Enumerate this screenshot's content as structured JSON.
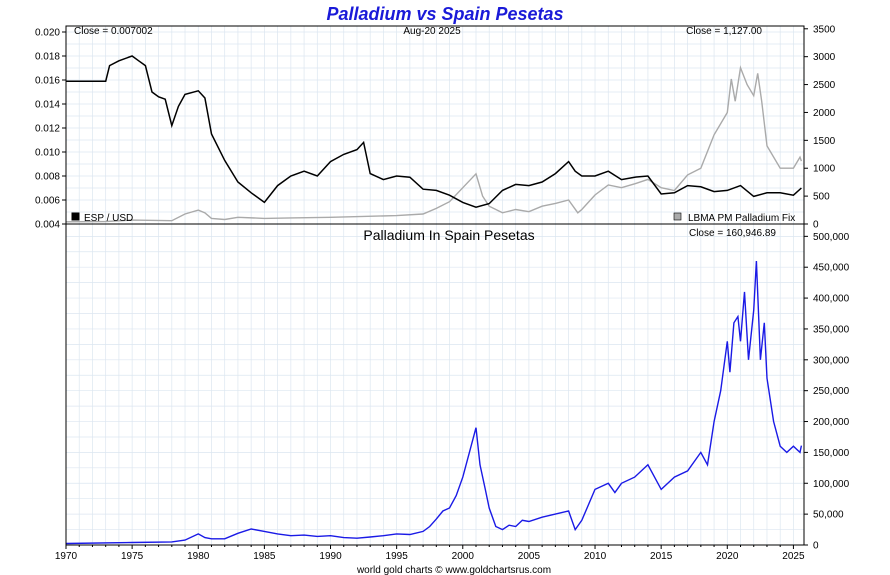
{
  "title": "Palladium vs Spain Pesetas",
  "footer": "world gold charts © www.goldchartsrus.com",
  "colors": {
    "title": "#1a1ad8",
    "esp_usd": "#000000",
    "palladium_usd": "#aaaaaa",
    "palladium_esp": "#1a1ae6",
    "grid": "#dce6f0",
    "frame": "#000000"
  },
  "x_axis": {
    "range": [
      1970,
      2025.8
    ],
    "tick_labels": [
      "1970",
      "1975",
      "1980",
      "1985",
      "1990",
      "1995",
      "2000",
      "2005",
      "2010",
      "2015",
      "2020",
      "2025"
    ]
  },
  "chart_data": [
    {
      "type": "line",
      "panel": "top",
      "date_label": "Aug-20  2025",
      "left_close": "Close = 0.007002",
      "right_close": "Close = 1,127.00",
      "left_axis": {
        "range": [
          0.004,
          0.0205
        ],
        "tick_labels": [
          "0.004",
          "0.006",
          "0.008",
          "0.010",
          "0.012",
          "0.014",
          "0.016",
          "0.018",
          "0.020"
        ]
      },
      "right_axis": {
        "range": [
          0,
          3550
        ],
        "tick_labels": [
          "0",
          "500",
          "1000",
          "1500",
          "2000",
          "2500",
          "3000",
          "3500"
        ]
      },
      "legend_left": "ESP / USD",
      "legend_right": "LBMA PM Palladium Fix",
      "series": [
        {
          "name": "ESP / USD",
          "axis": "left",
          "x": [
            1970,
            1971,
            1972,
            1973,
            1973.3,
            1974,
            1975,
            1975.5,
            1976,
            1976.5,
            1977,
            1977.5,
            1978,
            1978.5,
            1979,
            1980,
            1980.5,
            1981,
            1982,
            1983,
            1984,
            1985,
            1986,
            1987,
            1988,
            1989,
            1990,
            1991,
            1992,
            1992.5,
            1993,
            1994,
            1995,
            1996,
            1997,
            1998,
            1999,
            2000,
            2001,
            2002,
            2003,
            2004,
            2005,
            2006,
            2007,
            2008,
            2008.5,
            2009,
            2010,
            2011,
            2012,
            2013,
            2014,
            2015,
            2016,
            2017,
            2018,
            2019,
            2020,
            2021,
            2022,
            2023,
            2024,
            2025,
            2025.6
          ],
          "y": [
            0.0159,
            0.0159,
            0.0159,
            0.0159,
            0.0172,
            0.0176,
            0.018,
            0.0176,
            0.0172,
            0.015,
            0.0146,
            0.0144,
            0.0122,
            0.0138,
            0.0148,
            0.0151,
            0.0145,
            0.0115,
            0.0093,
            0.0075,
            0.0066,
            0.0058,
            0.0072,
            0.008,
            0.0084,
            0.008,
            0.0092,
            0.0098,
            0.0102,
            0.0108,
            0.0082,
            0.0077,
            0.008,
            0.0079,
            0.0069,
            0.0068,
            0.0064,
            0.0058,
            0.0054,
            0.0057,
            0.0068,
            0.0073,
            0.0072,
            0.0075,
            0.0082,
            0.0092,
            0.0084,
            0.008,
            0.008,
            0.0084,
            0.0077,
            0.0079,
            0.008,
            0.0065,
            0.0066,
            0.0072,
            0.0071,
            0.0067,
            0.0068,
            0.0072,
            0.0063,
            0.0066,
            0.0066,
            0.0064,
            0.007
          ]
        },
        {
          "name": "LBMA PM Palladium Fix",
          "axis": "right",
          "x": [
            1970,
            1973,
            1975,
            1978,
            1979,
            1980,
            1980.5,
            1981,
            1982,
            1983,
            1985,
            1987,
            1990,
            1995,
            1997,
            1998,
            1999,
            2000,
            2001,
            2001.5,
            2002,
            2003,
            2004,
            2005,
            2006,
            2007,
            2008,
            2008.7,
            2009,
            2010,
            2011,
            2012,
            2013,
            2014,
            2015,
            2016,
            2017,
            2018,
            2019,
            2020,
            2020.3,
            2020.6,
            2021,
            2021.5,
            2022,
            2022.3,
            2022.6,
            2023,
            2024,
            2025,
            2025.5,
            2025.6
          ],
          "y": [
            40,
            45,
            70,
            60,
            180,
            250,
            200,
            100,
            80,
            120,
            100,
            110,
            120,
            150,
            180,
            280,
            400,
            650,
            900,
            500,
            320,
            200,
            260,
            220,
            320,
            370,
            430,
            200,
            260,
            520,
            700,
            650,
            720,
            800,
            650,
            600,
            880,
            1000,
            1600,
            2000,
            2600,
            2200,
            2800,
            2500,
            2300,
            2700,
            2200,
            1400,
            1000,
            1000,
            1200,
            1127
          ]
        }
      ]
    },
    {
      "type": "line",
      "panel": "bottom",
      "title": "Palladium In Spain Pesetas",
      "right_close": "Close = 160,946.89",
      "right_axis": {
        "range": [
          0,
          520000
        ],
        "tick_labels": [
          "0",
          "50,000",
          "100,000",
          "150,000",
          "200,000",
          "250,000",
          "300,000",
          "350,000",
          "400,000",
          "450,000",
          "500,000"
        ]
      },
      "series": [
        {
          "name": "Palladium In Spain Pesetas",
          "axis": "right",
          "x": [
            1970,
            1975,
            1978,
            1979,
            1980,
            1980.5,
            1981,
            1982,
            1983,
            1984,
            1985,
            1986,
            1987,
            1988,
            1989,
            1990,
            1991,
            1992,
            1993,
            1994,
            1995,
            1996,
            1997,
            1997.5,
            1998,
            1998.5,
            1999,
            1999.5,
            2000,
            2000.5,
            2001,
            2001.3,
            2001.7,
            2002,
            2002.5,
            2003,
            2003.5,
            2004,
            2004.5,
            2005,
            2006,
            2007,
            2008,
            2008.5,
            2009,
            2009.5,
            2010,
            2011,
            2011.5,
            2012,
            2013,
            2014,
            2015,
            2016,
            2017,
            2018,
            2018.5,
            2019,
            2019.5,
            2020,
            2020.2,
            2020.5,
            2020.8,
            2021,
            2021.3,
            2021.6,
            2022,
            2022.2,
            2022.5,
            2022.8,
            2023,
            2023.5,
            2024,
            2024.5,
            2025,
            2025.5,
            2025.6
          ],
          "y": [
            2500,
            4000,
            5000,
            8000,
            18000,
            12000,
            10000,
            10000,
            19000,
            26000,
            22000,
            18000,
            15000,
            16000,
            14000,
            15000,
            12000,
            11000,
            13000,
            15000,
            18000,
            17000,
            22000,
            30000,
            42000,
            55000,
            60000,
            80000,
            110000,
            150000,
            190000,
            130000,
            90000,
            60000,
            30000,
            25000,
            32000,
            30000,
            40000,
            38000,
            45000,
            50000,
            55000,
            25000,
            40000,
            65000,
            90000,
            100000,
            85000,
            100000,
            110000,
            130000,
            90000,
            110000,
            120000,
            150000,
            130000,
            200000,
            250000,
            330000,
            280000,
            360000,
            370000,
            330000,
            410000,
            300000,
            380000,
            460000,
            300000,
            360000,
            270000,
            200000,
            160000,
            150000,
            160000,
            150000,
            160946
          ]
        }
      ]
    }
  ]
}
